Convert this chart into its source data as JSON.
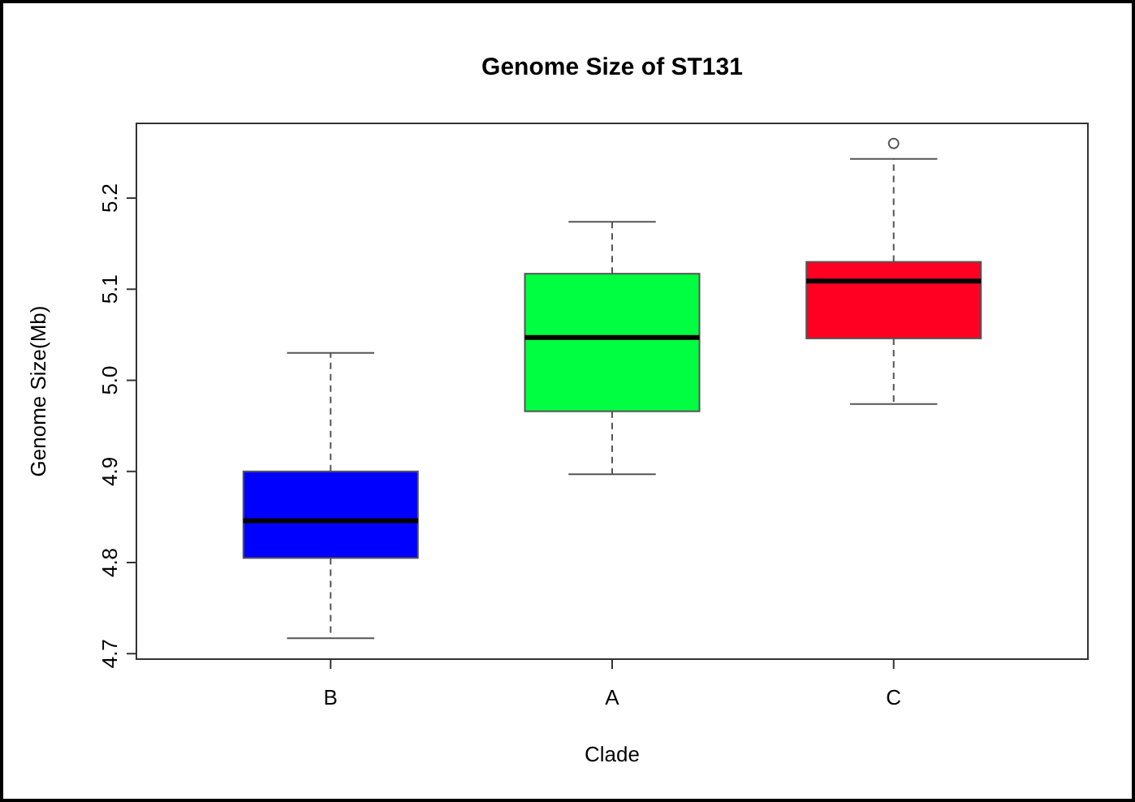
{
  "chart_data": {
    "type": "box",
    "title": "Genome Size of ST131",
    "xlabel": "Clade",
    "ylabel": "Genome Size(Mb)",
    "categories": [
      "B",
      "A",
      "C"
    ],
    "colors": [
      "#0000ff",
      "#00ff40",
      "#ff0022"
    ],
    "boxes": [
      {
        "low": 4.717,
        "q1": 4.805,
        "median": 4.846,
        "q3": 4.9,
        "high": 5.03
      },
      {
        "low": 4.897,
        "q1": 4.966,
        "median": 5.047,
        "q3": 5.117,
        "high": 5.174
      },
      {
        "low": 4.974,
        "q1": 5.046,
        "median": 5.109,
        "q3": 5.13,
        "high": 5.243,
        "outliers": [
          5.26
        ]
      }
    ],
    "ylim": [
      4.694,
      5.282
    ],
    "yticks": [
      4.7,
      4.8,
      4.9,
      {
        "value": 5,
        "label": "5.0"
      },
      5.1,
      5.2
    ],
    "grid": false
  }
}
